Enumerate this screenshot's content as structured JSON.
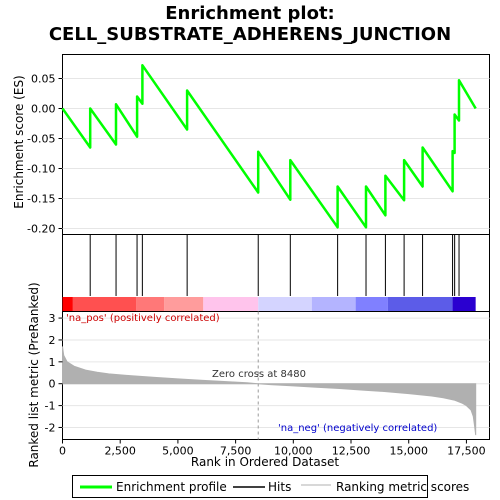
{
  "title_line1": "Enrichment plot:",
  "title_line2": "CELL_SUBSTRATE_ADHERENS_JUNCTION",
  "chart_data": [
    {
      "type": "line",
      "panel": "enrichment",
      "ylabel": "Enrichment score (ES)",
      "xlim": [
        0,
        18500
      ],
      "ylim": [
        -0.21,
        0.09
      ],
      "yticks": [
        0.05,
        0.0,
        -0.05,
        -0.1,
        -0.15,
        -0.2
      ],
      "ytick_labels": [
        "0.05",
        "0.00",
        "-0.05",
        "-0.10",
        "-0.15",
        "-0.20"
      ],
      "series": [
        {
          "name": "Enrichment profile",
          "color": "#00ff00",
          "x": [
            0,
            1200,
            1200,
            2320,
            2320,
            3230,
            3230,
            3460,
            3460,
            5400,
            5400,
            8480,
            8480,
            9870,
            9870,
            11920,
            11920,
            13150,
            13150,
            13990,
            13990,
            14800,
            14800,
            15600,
            15600,
            16900,
            16900,
            16990,
            16990,
            17180,
            17180,
            17900
          ],
          "y": [
            0.0,
            -0.065,
            0.0,
            -0.06,
            0.007,
            -0.047,
            0.02,
            0.008,
            0.072,
            -0.035,
            0.03,
            -0.14,
            -0.072,
            -0.152,
            -0.086,
            -0.198,
            -0.13,
            -0.198,
            -0.13,
            -0.178,
            -0.112,
            -0.153,
            -0.086,
            -0.13,
            -0.065,
            -0.138,
            -0.071,
            -0.074,
            -0.01,
            -0.02,
            0.047,
            0.0
          ]
        }
      ],
      "grid": true
    },
    {
      "type": "hits",
      "panel": "hits",
      "hit_ranks": [
        1200,
        2320,
        3230,
        3460,
        5400,
        8480,
        9870,
        11920,
        13150,
        13990,
        14800,
        15600,
        16900,
        16990,
        17180
      ],
      "color_bar": [
        {
          "from": 0,
          "to": 450,
          "color": "#ff0000"
        },
        {
          "from": 450,
          "to": 3200,
          "color": "#ff5050"
        },
        {
          "from": 3200,
          "to": 4400,
          "color": "#ff7878"
        },
        {
          "from": 4400,
          "to": 6100,
          "color": "#ff9c9c"
        },
        {
          "from": 6100,
          "to": 8480,
          "color": "#ffc4ec"
        },
        {
          "from": 8480,
          "to": 10800,
          "color": "#d4d4ff"
        },
        {
          "from": 10800,
          "to": 12700,
          "color": "#b4b4ff"
        },
        {
          "from": 12700,
          "to": 14100,
          "color": "#8080ff"
        },
        {
          "from": 14100,
          "to": 16900,
          "color": "#5c5ce8"
        },
        {
          "from": 16900,
          "to": 17900,
          "color": "#2a00d0"
        }
      ]
    },
    {
      "type": "area",
      "panel": "ranked_metric",
      "ylabel": "Ranked list metric (PreRanked)",
      "xlabel": "Rank in Ordered Dataset",
      "xlim": [
        0,
        18500
      ],
      "ylim": [
        -2.55,
        3.3
      ],
      "xticks": [
        0,
        2500,
        5000,
        7500,
        10000,
        12500,
        15000,
        17500
      ],
      "xtick_labels": [
        "0",
        "2,500",
        "5,000",
        "7,500",
        "10,000",
        "12,500",
        "15,000",
        "17,500"
      ],
      "yticks": [
        3,
        2,
        1,
        0,
        -1,
        -2
      ],
      "ytick_labels": [
        "3",
        "2",
        "1",
        "0",
        "-1",
        "-2"
      ],
      "series": [
        {
          "name": "Ranking metric scores",
          "color": "#b0b0b0",
          "x": [
            0,
            50,
            200,
            500,
            1000,
            1500,
            2000,
            3000,
            4000,
            5000,
            6000,
            7000,
            8000,
            8480,
            9000,
            10000,
            11000,
            12000,
            13000,
            14000,
            15000,
            16000,
            16500,
            17000,
            17300,
            17500,
            17700,
            17800,
            17850,
            17900
          ],
          "y": [
            1.7,
            1.3,
            1.0,
            0.8,
            0.62,
            0.52,
            0.45,
            0.36,
            0.29,
            0.22,
            0.16,
            0.1,
            0.04,
            0.0,
            -0.04,
            -0.1,
            -0.16,
            -0.22,
            -0.29,
            -0.36,
            -0.45,
            -0.56,
            -0.64,
            -0.76,
            -0.88,
            -1.0,
            -1.2,
            -1.5,
            -1.9,
            -2.35
          ]
        }
      ],
      "zero_cross_label": "Zero cross at 8480",
      "zero_cross": 8480,
      "pos_label": "'na_pos' (positively correlated)",
      "neg_label": "'na_neg' (negatively correlated)"
    }
  ],
  "legend": {
    "items": [
      {
        "label": "Enrichment profile",
        "color": "#00ff00"
      },
      {
        "label": "Hits",
        "color": "#000000"
      },
      {
        "label": "Ranking metric scores",
        "color": "#b0b0b0"
      }
    ]
  }
}
